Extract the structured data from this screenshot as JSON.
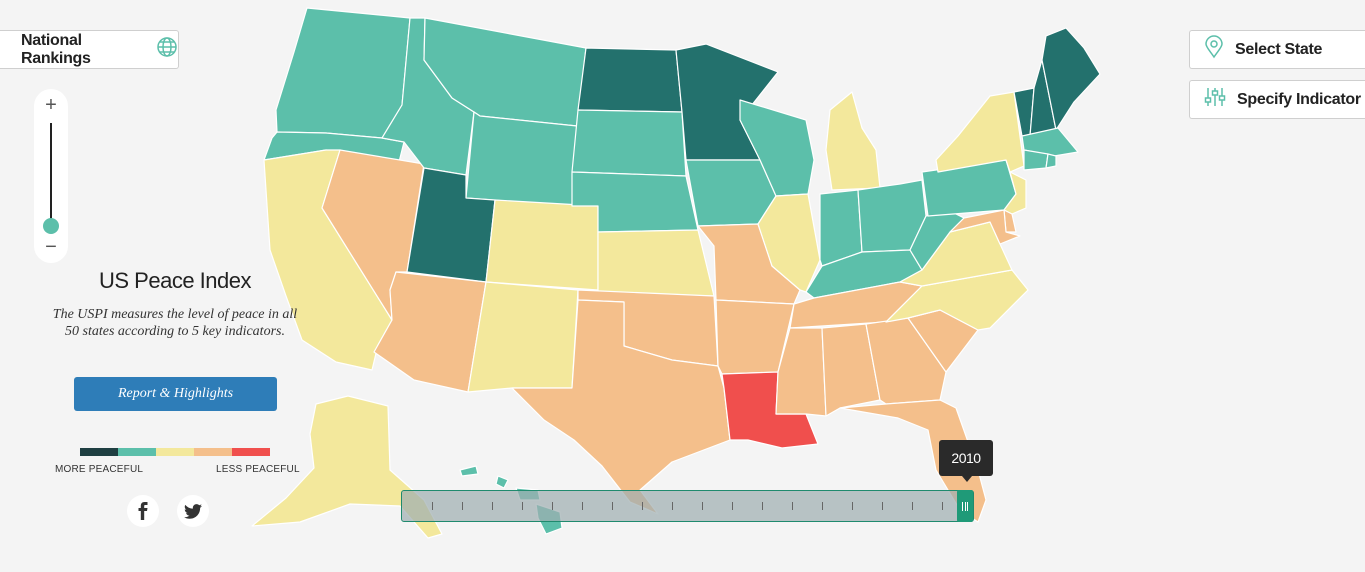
{
  "header": {
    "national_rankings_label": "National Rankings",
    "select_state_label": "Select State",
    "specify_indicator_label": "Specify Indicator"
  },
  "zoom": {
    "in_label": "+",
    "out_label": "−",
    "level": 0
  },
  "panel": {
    "title": "US Peace Index",
    "description": "The USPI measures the level of peace in all 50 states according to 5 key indicators.",
    "report_button": "Report & Highlights"
  },
  "legend": {
    "colors": [
      "#1f3f42",
      "#5cbfaa",
      "#f3e89c",
      "#f4bf8b",
      "#f04f4d"
    ],
    "more_label": "MORE PEACEFUL",
    "less_label": "LESS PEACEFUL"
  },
  "social": {
    "facebook_icon": "facebook-icon",
    "twitter_icon": "twitter-icon"
  },
  "timeline": {
    "selected_year": "2010",
    "position": 1.0,
    "tick_count": 18
  },
  "map": {
    "tier_colors": {
      "1": "#23716d",
      "2": "#5cbfaa",
      "3": "#f3e89c",
      "4": "#f4bf8b",
      "5": "#f04f4d"
    },
    "states": {
      "WA": 2,
      "OR": 2,
      "CA": 3,
      "NV": 4,
      "ID": 2,
      "MT": 2,
      "WY": 2,
      "UT": 1,
      "AZ": 4,
      "CO": 3,
      "NM": 3,
      "ND": 1,
      "SD": 2,
      "NE": 2,
      "KS": 3,
      "OK": 4,
      "TX": 4,
      "MN": 1,
      "IA": 2,
      "MO": 4,
      "AR": 4,
      "LA": 5,
      "WI": 2,
      "IL": 3,
      "MI": 3,
      "IN": 2,
      "OH": 2,
      "KY": 2,
      "TN": 4,
      "MS": 4,
      "AL": 4,
      "GA": 4,
      "FL": 4,
      "SC": 4,
      "NC": 3,
      "VA": 3,
      "WV": 2,
      "PA": 2,
      "NY": 3,
      "NJ": 3,
      "DE": 4,
      "MD": 4,
      "VT": 1,
      "NH": 1,
      "ME": 1,
      "MA": 2,
      "CT": 2,
      "RI": 2,
      "AK": 3,
      "HI": 2
    }
  }
}
